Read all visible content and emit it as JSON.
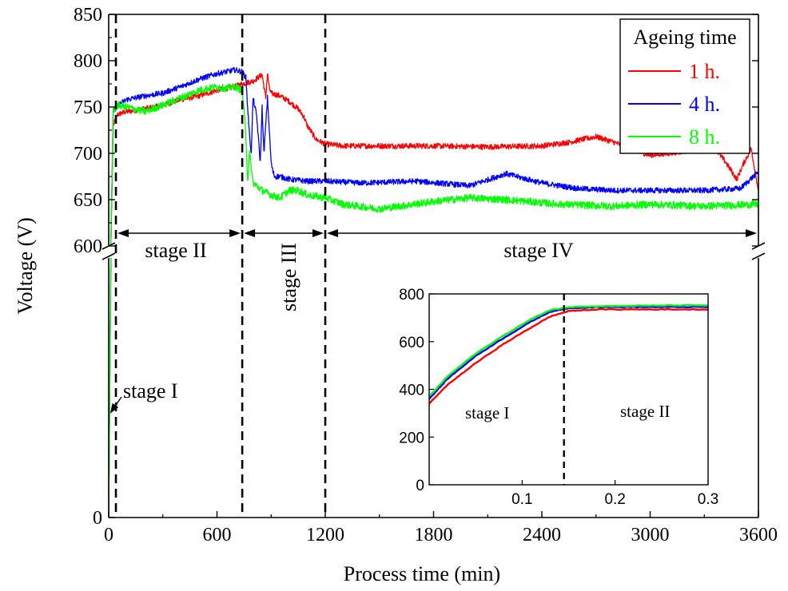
{
  "chart_data": {
    "type": "line",
    "xlabel": "Process time (min)",
    "ylabel": "Voltage (V)",
    "xlim": [
      0,
      3600
    ],
    "x_ticks": [
      "0",
      "600",
      "1200",
      "1800",
      "2400",
      "3000",
      "3600"
    ],
    "y_ticks_lower": [
      "0"
    ],
    "y_ticks_upper": [
      "600",
      "650",
      "700",
      "750",
      "800",
      "850"
    ],
    "y_axis_break": {
      "lower_range": [
        0,
        600
      ],
      "upper_range": [
        600,
        850
      ]
    },
    "legend": {
      "title": "Ageing time",
      "placement": "top-right"
    },
    "stage_lines_x": [
      40,
      740,
      1200
    ],
    "stage_labels": {
      "stage_I": "stage I",
      "stage_II": "stage II",
      "stage_III": "stage III",
      "stage_IV": "stage IV"
    },
    "stage_spans": {
      "stage_II": [
        40,
        740
      ],
      "stage_III": [
        740,
        1200
      ],
      "stage_IV": [
        1200,
        3600
      ]
    },
    "series": [
      {
        "name": "1 h.",
        "color": "#ff0000",
        "x": [
          0,
          12,
          25,
          50,
          100,
          200,
          300,
          400,
          500,
          600,
          650,
          700,
          740,
          800,
          850,
          870,
          880,
          890,
          900,
          950,
          1000,
          1050,
          1080,
          1100,
          1150,
          1200,
          1300,
          1500,
          1800,
          2100,
          2400,
          2550,
          2700,
          2800,
          2900,
          3000,
          3100,
          3250,
          3350,
          3420,
          3480,
          3520,
          3560,
          3600
        ],
        "y": [
          0,
          600,
          730,
          742,
          745,
          748,
          752,
          758,
          762,
          768,
          770,
          772,
          775,
          778,
          785,
          760,
          786,
          770,
          765,
          762,
          756,
          748,
          740,
          730,
          715,
          710,
          708,
          708,
          708,
          707,
          708,
          712,
          718,
          712,
          704,
          698,
          700,
          704,
          708,
          690,
          672,
          690,
          705,
          660
        ],
        "noise": 3
      },
      {
        "name": "4 h.",
        "color": "#0000ff",
        "x": [
          0,
          12,
          25,
          50,
          100,
          200,
          300,
          400,
          500,
          600,
          700,
          740,
          760,
          770,
          780,
          790,
          800,
          820,
          840,
          850,
          860,
          880,
          900,
          910,
          920,
          950,
          1000,
          1100,
          1200,
          1400,
          1700,
          2000,
          2200,
          2400,
          2600,
          2800,
          3000,
          3300,
          3500,
          3600
        ],
        "y": [
          0,
          600,
          745,
          752,
          758,
          762,
          765,
          772,
          780,
          786,
          790,
          788,
          782,
          750,
          720,
          700,
          760,
          740,
          690,
          750,
          700,
          760,
          690,
          680,
          675,
          675,
          672,
          670,
          670,
          668,
          670,
          665,
          678,
          668,
          662,
          660,
          660,
          660,
          662,
          680
        ],
        "noise": 3
      },
      {
        "name": "8 h.",
        "color": "#00ff00",
        "x": [
          0,
          12,
          25,
          50,
          100,
          200,
          300,
          400,
          500,
          600,
          650,
          700,
          740,
          750,
          760,
          770,
          780,
          800,
          850,
          900,
          950,
          1000,
          1050,
          1100,
          1200,
          1300,
          1500,
          1800,
          2000,
          2200,
          2500,
          2800,
          3000,
          3300,
          3600
        ],
        "y": [
          0,
          600,
          745,
          752,
          750,
          745,
          752,
          760,
          768,
          772,
          770,
          772,
          768,
          745,
          720,
          670,
          700,
          668,
          660,
          655,
          652,
          660,
          660,
          655,
          652,
          645,
          640,
          648,
          652,
          650,
          645,
          643,
          645,
          643,
          645
        ],
        "noise": 4
      }
    ],
    "inset": {
      "type": "line",
      "xlim": [
        0.0,
        0.3
      ],
      "ylim": [
        0,
        800
      ],
      "x_ticks": [
        "0.1",
        "0.2",
        "0.3"
      ],
      "y_ticks": [
        "0",
        "200",
        "400",
        "600",
        "800"
      ],
      "stage_line_x": 0.145,
      "stage_labels": {
        "left": "stage I",
        "right": "stage II"
      },
      "series": [
        {
          "name": "1 h.",
          "color": "#ff0000",
          "x": [
            0.0,
            0.02,
            0.05,
            0.08,
            0.11,
            0.13,
            0.15,
            0.18,
            0.22,
            0.26,
            0.3
          ],
          "y": [
            340,
            420,
            510,
            590,
            660,
            705,
            728,
            735,
            735,
            735,
            735
          ]
        },
        {
          "name": "4 h.",
          "color": "#0000ff",
          "x": [
            0.0,
            0.02,
            0.05,
            0.08,
            0.11,
            0.13,
            0.15,
            0.18,
            0.22,
            0.26,
            0.3
          ],
          "y": [
            360,
            445,
            540,
            615,
            685,
            725,
            740,
            745,
            745,
            745,
            745
          ]
        },
        {
          "name": "8 h.",
          "color": "#00ff00",
          "x": [
            0.0,
            0.02,
            0.05,
            0.08,
            0.11,
            0.13,
            0.15,
            0.18,
            0.22,
            0.26,
            0.3
          ],
          "y": [
            370,
            455,
            550,
            625,
            695,
            732,
            745,
            748,
            750,
            752,
            752
          ]
        }
      ]
    }
  }
}
